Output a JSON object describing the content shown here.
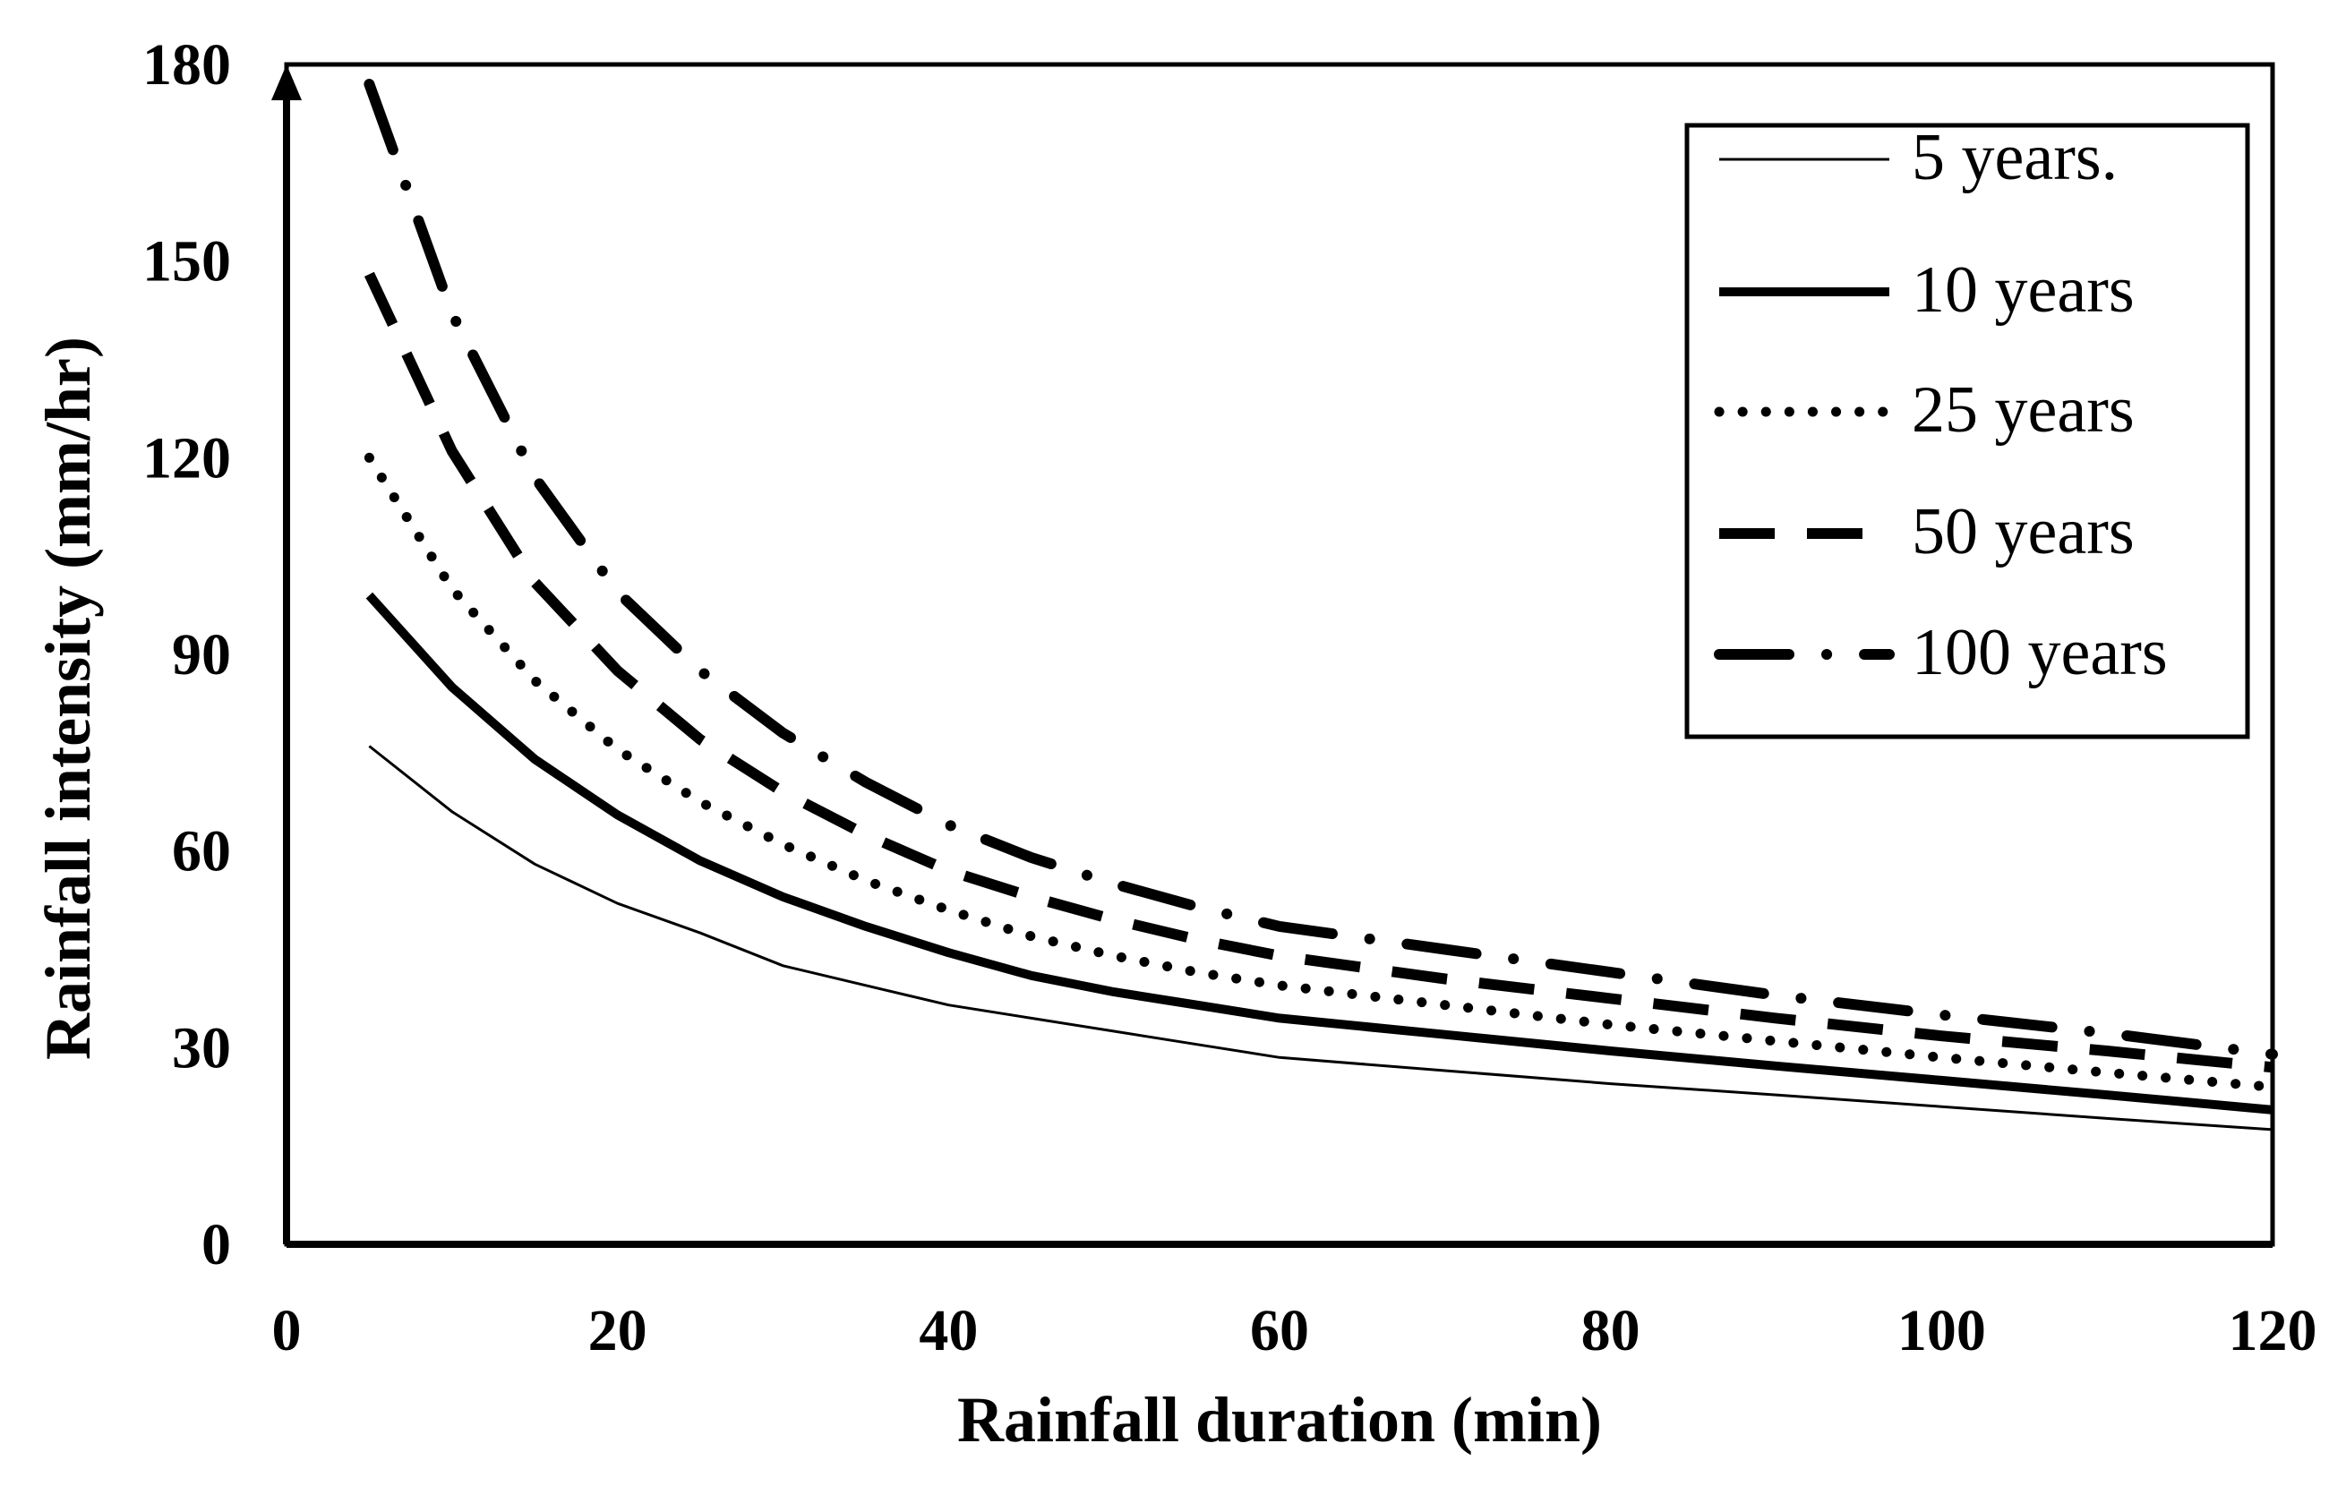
{
  "chart_data": {
    "type": "line",
    "title": "",
    "xlabel": "Rainfall duration (min)",
    "ylabel": "Rainfall intensity (mm/hr)",
    "xlim": [
      0,
      120
    ],
    "ylim": [
      0,
      180
    ],
    "xticks": [
      0,
      20,
      40,
      60,
      80,
      100,
      120
    ],
    "yticks": [
      0,
      30,
      60,
      90,
      120,
      150,
      180
    ],
    "grid": false,
    "legend_position": "top-right",
    "x": [
      5,
      10,
      15,
      20,
      25,
      30,
      35,
      40,
      45,
      50,
      55,
      60,
      70,
      80,
      90,
      100,
      110,
      120
    ],
    "series": [
      {
        "name": "5 years.",
        "style": "thin-solid",
        "values": [
          76,
          66,
          58,
          52,
          47.5,
          42.5,
          39.5,
          36.5,
          34.5,
          32.5,
          30.5,
          28.5,
          26.5,
          24.5,
          22.8,
          21,
          19.2,
          17.5
        ]
      },
      {
        "name": "10 years",
        "style": "thick-solid",
        "values": [
          99,
          85,
          74,
          65.5,
          58.5,
          53,
          48.5,
          44.5,
          41,
          38.5,
          36.5,
          34.5,
          32,
          29.5,
          27.2,
          25,
          22.8,
          20.5
        ]
      },
      {
        "name": "25 years",
        "style": "dotted",
        "values": [
          120,
          100,
          86,
          75.5,
          67.5,
          61,
          55.5,
          51,
          47,
          44,
          41.5,
          39.5,
          36.5,
          33.5,
          31,
          28.5,
          26.2,
          24
        ]
      },
      {
        "name": "50 years",
        "style": "dashed",
        "values": [
          148,
          121,
          101,
          87.5,
          77,
          69,
          62.5,
          57,
          53,
          49.5,
          46.5,
          44,
          40.5,
          37.5,
          34.5,
          31.8,
          29.5,
          27
        ]
      },
      {
        "name": "100 years",
        "style": "dash-dot",
        "values": [
          177,
          142,
          117,
          99.5,
          87.5,
          78,
          70.5,
          64,
          59,
          55,
          51.5,
          48.5,
          45,
          41.5,
          38,
          35,
          32.2,
          29
        ]
      }
    ]
  }
}
